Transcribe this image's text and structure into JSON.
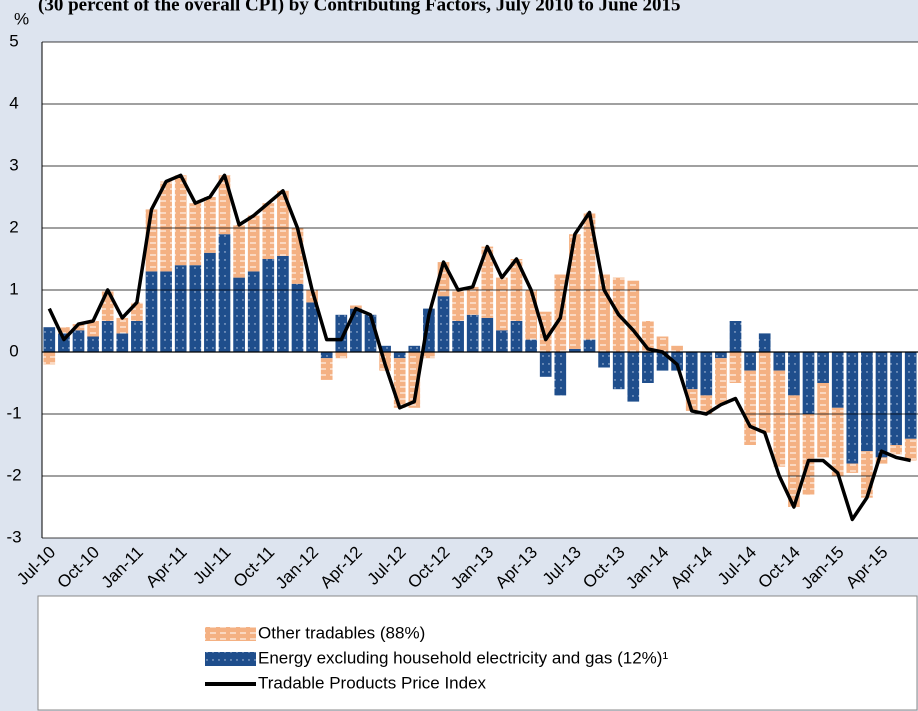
{
  "chart_data": {
    "type": "bar",
    "title": "(30 percent of the overall CPI) by Contributing Factors, July 2010 to June 2015",
    "y_label": "%",
    "categories": [
      "Jul-10",
      null,
      null,
      "Oct-10",
      null,
      null,
      "Jan-11",
      null,
      null,
      "Apr-11",
      null,
      null,
      "Jul-11",
      null,
      null,
      "Oct-11",
      null,
      null,
      "Jan-12",
      null,
      null,
      "Apr-12",
      null,
      null,
      "Jul-12",
      null,
      null,
      "Oct-12",
      null,
      null,
      "Jan-13",
      null,
      null,
      "Apr-13",
      null,
      null,
      "Jul-13",
      null,
      null,
      "Oct-13",
      null,
      null,
      "Jan-14",
      null,
      null,
      "Apr-14",
      null,
      null,
      "Jul-14",
      null,
      null,
      "Oct-14",
      null,
      null,
      "Jan-15",
      null,
      null,
      "Apr-15",
      null,
      null
    ],
    "stacked": true,
    "series": [
      {
        "name": "Energy excluding household electricity and gas (12%)¹",
        "type": "bar",
        "color": "#1f4e8c",
        "values": [
          0.4,
          0.3,
          0.35,
          0.25,
          0.5,
          0.3,
          0.5,
          1.3,
          1.3,
          1.4,
          1.4,
          1.6,
          1.9,
          1.2,
          1.3,
          1.5,
          1.55,
          1.1,
          0.8,
          -0.1,
          0.6,
          0.7,
          0.6,
          0.1,
          -0.1,
          0.1,
          0.7,
          0.9,
          0.5,
          0.6,
          0.55,
          0.35,
          0.5,
          0.2,
          -0.4,
          -0.7,
          0.05,
          0.2,
          -0.25,
          -0.6,
          -0.8,
          -0.5,
          -0.3,
          -0.3,
          -0.6,
          -0.7,
          -0.1,
          0.5,
          -0.3,
          0.3,
          -0.3,
          -0.7,
          -1.0,
          -0.5,
          -0.9,
          -1.8,
          -1.6,
          -1.7,
          -1.5,
          -1.4
        ]
      },
      {
        "name": "Other tradables (88%)",
        "type": "bar",
        "color": "#f4b183",
        "values": [
          -0.2,
          0.1,
          0.1,
          0.25,
          0.5,
          0.25,
          0.3,
          1.0,
          1.45,
          1.45,
          1.0,
          0.9,
          0.95,
          0.85,
          0.9,
          0.9,
          1.05,
          0.9,
          0.2,
          -0.35,
          -0.1,
          0.05,
          0.0,
          -0.3,
          -0.8,
          -0.9,
          -0.1,
          0.55,
          0.5,
          0.45,
          1.15,
          0.85,
          1.0,
          0.8,
          0.65,
          1.25,
          1.85,
          2.05,
          1.25,
          1.2,
          1.15,
          0.5,
          0.25,
          0.1,
          -0.35,
          -0.3,
          -0.75,
          -0.5,
          -1.2,
          -1.3,
          -1.55,
          -1.8,
          -1.3,
          -1.2,
          -1.1,
          -0.15,
          -0.75,
          -0.1,
          -0.15,
          -0.35
        ]
      },
      {
        "name": "Tradable Products Price Index",
        "type": "line",
        "color": "#000000",
        "values": [
          0.7,
          0.2,
          0.45,
          0.5,
          1.0,
          0.55,
          0.8,
          2.3,
          2.75,
          2.85,
          2.4,
          2.5,
          2.85,
          2.05,
          2.2,
          2.4,
          2.6,
          2.0,
          1.0,
          0.2,
          0.2,
          0.7,
          0.6,
          -0.2,
          -0.9,
          -0.8,
          0.6,
          1.45,
          1.0,
          1.05,
          1.7,
          1.2,
          1.5,
          1.0,
          0.2,
          0.55,
          1.9,
          2.25,
          1.0,
          0.6,
          0.35,
          0.05,
          0.0,
          -0.2,
          -0.95,
          -1.0,
          -0.85,
          -0.75,
          -1.2,
          -1.3,
          -2.0,
          -2.5,
          -1.75,
          -1.75,
          -1.95,
          -2.7,
          -2.35,
          -1.6,
          -1.7,
          -1.75
        ]
      }
    ],
    "legend_order": [
      1,
      0,
      2
    ],
    "ylim": [
      -3,
      5
    ],
    "yticks": [
      -3,
      -2,
      -1,
      0,
      1,
      2,
      3,
      4,
      5
    ],
    "grid": true
  }
}
